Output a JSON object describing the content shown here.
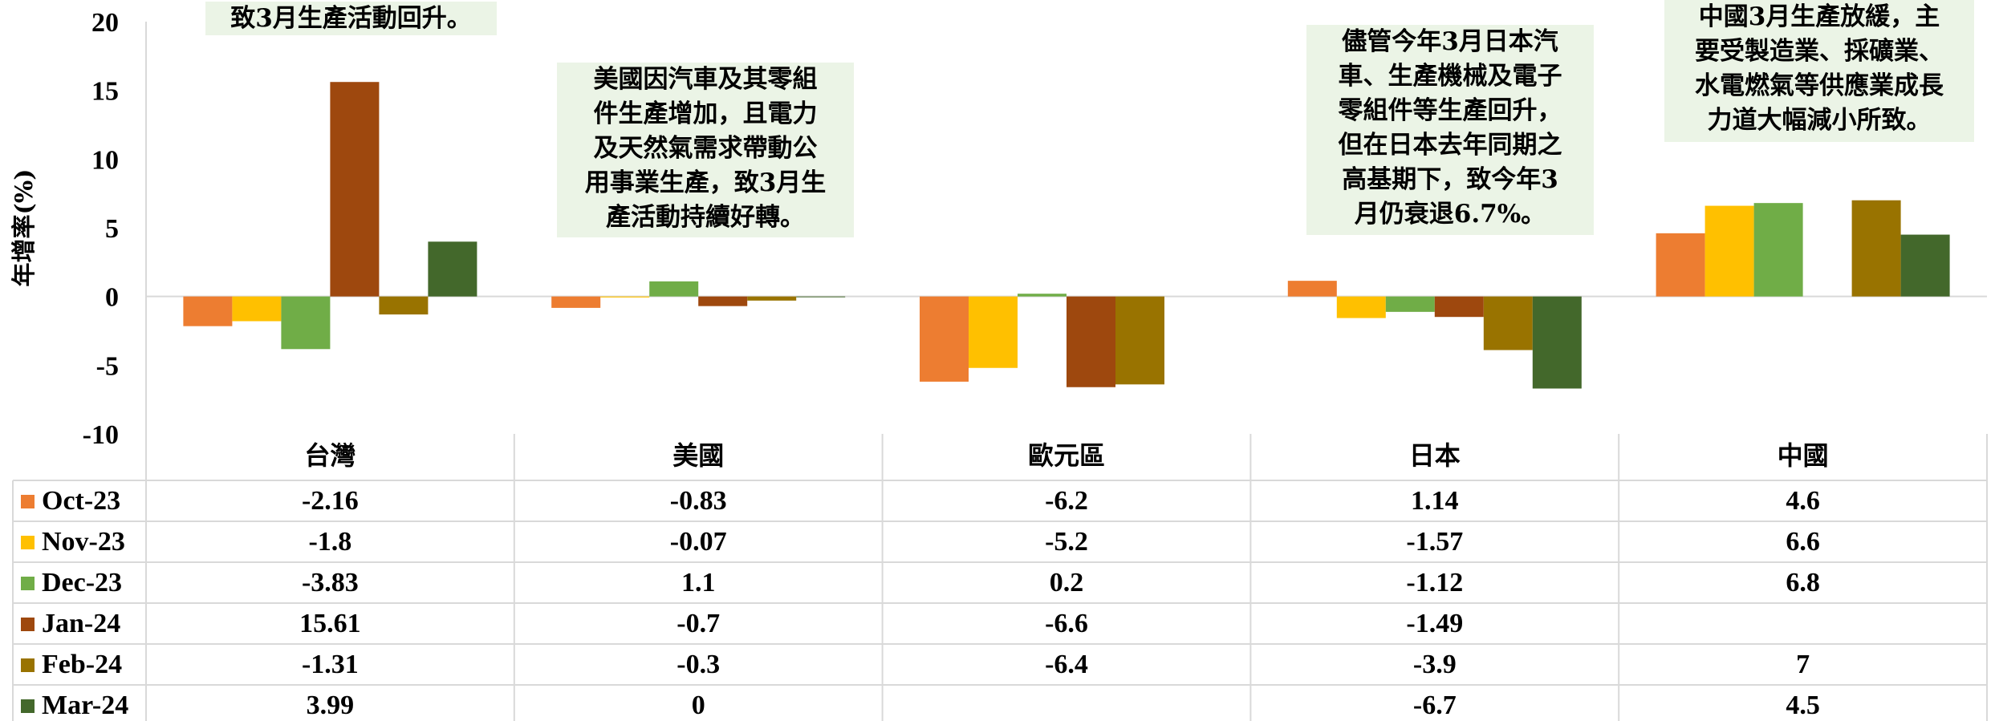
{
  "chart_data": {
    "type": "bar",
    "ylabel": "年增率(%)",
    "ylim": [
      -10,
      20
    ],
    "yticks": [
      20,
      15,
      10,
      5,
      0,
      -5,
      -10
    ],
    "categories": [
      "台灣",
      "美國",
      "歐元區",
      "日本",
      "中國"
    ],
    "series": [
      {
        "name": "Oct-23",
        "color": "#ed7d31",
        "values": [
          -2.16,
          -0.83,
          -6.2,
          1.14,
          4.6
        ],
        "labels": [
          "-2.16",
          "-0.83",
          "-6.2",
          "1.14",
          "4.6"
        ]
      },
      {
        "name": "Nov-23",
        "color": "#ffc000",
        "values": [
          -1.8,
          -0.07,
          -5.2,
          -1.57,
          6.6
        ],
        "labels": [
          "-1.8",
          "-0.07",
          "-5.2",
          "-1.57",
          "6.6"
        ]
      },
      {
        "name": "Dec-23",
        "color": "#70ad47",
        "values": [
          -3.83,
          1.1,
          0.2,
          -1.12,
          6.8
        ],
        "labels": [
          "-3.83",
          "1.1",
          "0.2",
          "-1.12",
          "6.8"
        ]
      },
      {
        "name": "Jan-24",
        "color": "#9e480e",
        "values": [
          15.61,
          -0.7,
          -6.6,
          -1.49,
          null
        ],
        "labels": [
          "15.61",
          "-0.7",
          "-6.6",
          "-1.49",
          ""
        ]
      },
      {
        "name": "Feb-24",
        "color": "#997300",
        "values": [
          -1.31,
          -0.3,
          -6.4,
          -3.9,
          7
        ],
        "labels": [
          "-1.31",
          "-0.3",
          "-6.4",
          "-3.9",
          "7"
        ]
      },
      {
        "name": "Mar-24",
        "color": "#43682b",
        "values": [
          3.99,
          0,
          null,
          -6.7,
          4.5
        ],
        "labels": [
          "3.99",
          "0",
          "",
          "-6.7",
          "4.5"
        ]
      }
    ],
    "annotations": [
      "致3月生產活動回升。",
      "美國因汽車及其零組\n件生產增加，且電力\n及天然氣需求帶動公\n用事業生產，致3月生\n產活動持續好轉。",
      "儘管今年3月日本汽\n車、生產機械及電子\n零組件等生產回升，\n但在日本去年同期之\n高基期下，致今年3\n月仍衰退6.7%。",
      "中國3月生產放緩，主\n要受製造業、採礦業、\n水電燃氣等供應業成長\n力道大幅減小所致。"
    ],
    "grid": false,
    "legend": "data-table"
  }
}
